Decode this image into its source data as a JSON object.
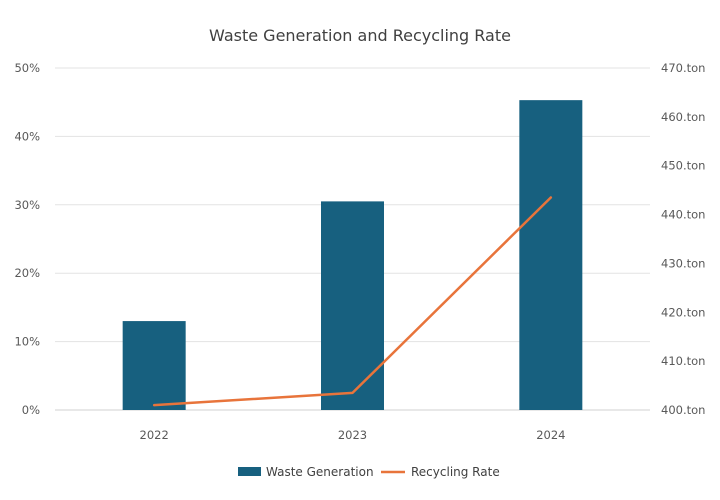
{
  "chart_data": {
    "type": "bar+line",
    "title": "Waste Generation and Recycling Rate",
    "categories": [
      "2022",
      "2023",
      "2024"
    ],
    "series": [
      {
        "name": "Waste Generation",
        "type": "bar",
        "axis": "left",
        "values": [
          0.13,
          0.305,
          0.453
        ],
        "color": "#17607f"
      },
      {
        "name": "Recycling Rate",
        "type": "line",
        "axis": "right",
        "values": [
          401,
          403.5,
          443.5
        ],
        "color": "#e8743b"
      }
    ],
    "y_left": {
      "ylim": [
        0,
        0.5
      ],
      "ticks": [
        0,
        0.1,
        0.2,
        0.3,
        0.4,
        0.5
      ],
      "tick_labels": [
        "0%",
        "10%",
        "20%",
        "30%",
        "40%",
        "50%"
      ]
    },
    "y_right": {
      "ylim": [
        400,
        470
      ],
      "ticks": [
        400,
        410,
        420,
        430,
        440,
        450,
        460,
        470
      ],
      "tick_labels": [
        "400.ton",
        "410.ton",
        "420.ton",
        "430.ton",
        "440.ton",
        "450.ton",
        "460.ton",
        "470.ton"
      ]
    },
    "grid": true,
    "legend_position": "bottom"
  }
}
